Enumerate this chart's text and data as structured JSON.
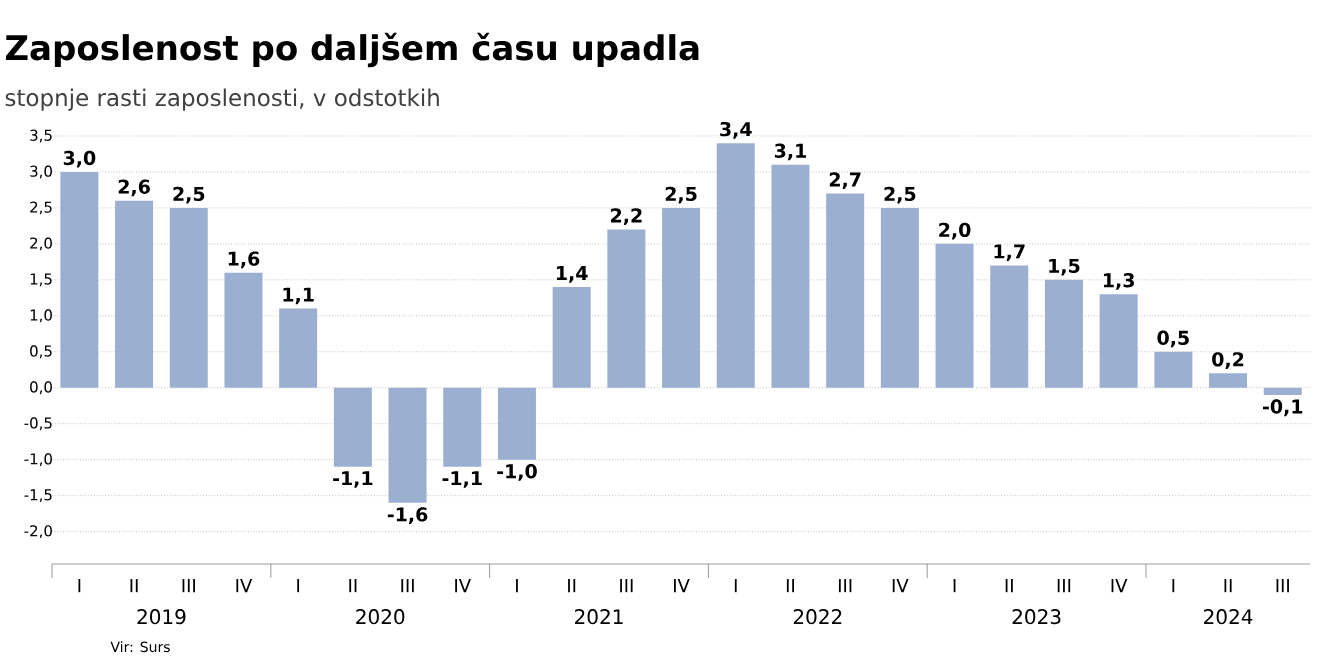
{
  "chart_data": {
    "type": "bar",
    "title": "Zaposlenost po daljšem času upadla",
    "subtitle": "stopnje rasti zaposlenosti, v odstotkih",
    "categories": [
      "I",
      "II",
      "III",
      "IV",
      "I",
      "II",
      "III",
      "IV",
      "I",
      "II",
      "III",
      "IV",
      "I",
      "II",
      "III",
      "IV",
      "I",
      "II",
      "III",
      "IV",
      "I",
      "II",
      "III"
    ],
    "values": [
      3.0,
      2.6,
      2.5,
      1.6,
      1.1,
      -1.1,
      -1.6,
      -1.1,
      -1.0,
      1.4,
      2.2,
      2.5,
      3.4,
      3.1,
      2.7,
      2.5,
      2.0,
      1.7,
      1.5,
      1.3,
      0.5,
      0.2,
      -0.1
    ],
    "value_labels": [
      "3,0",
      "2,6",
      "2,5",
      "1,6",
      "1,1",
      "-1,1",
      "-1,6",
      "-1,1",
      "-1,0",
      "1,4",
      "2,2",
      "2,5",
      "3,4",
      "3,1",
      "2,7",
      "2,5",
      "2,0",
      "1,7",
      "1,5",
      "1,3",
      "0,5",
      "0,2",
      "-0,1"
    ],
    "color": "#9bb0d0",
    "ylim": [
      -2.45,
      3.5
    ],
    "yticks": [
      {
        "value": -2.0,
        "label": "-2,0"
      },
      {
        "value": -1.5,
        "label": "-1,5"
      },
      {
        "value": -1.0,
        "label": "-1,0"
      },
      {
        "value": -0.5,
        "label": "-0,5"
      },
      {
        "value": 0.0,
        "label": "0,0"
      },
      {
        "value": 0.5,
        "label": "0,5"
      },
      {
        "value": 1.0,
        "label": "1,0"
      },
      {
        "value": 1.5,
        "label": "1,5"
      },
      {
        "value": 2.0,
        "label": "2,0"
      },
      {
        "value": 2.5,
        "label": "2,5"
      },
      {
        "value": 3.0,
        "label": "3,0"
      },
      {
        "value": 3.5,
        "label": "3,5"
      }
    ],
    "grid": "y",
    "annotations": [
      "2019",
      "2020",
      "2021",
      "2022",
      "2023",
      "2024",
      "Vir: Surs"
    ]
  }
}
